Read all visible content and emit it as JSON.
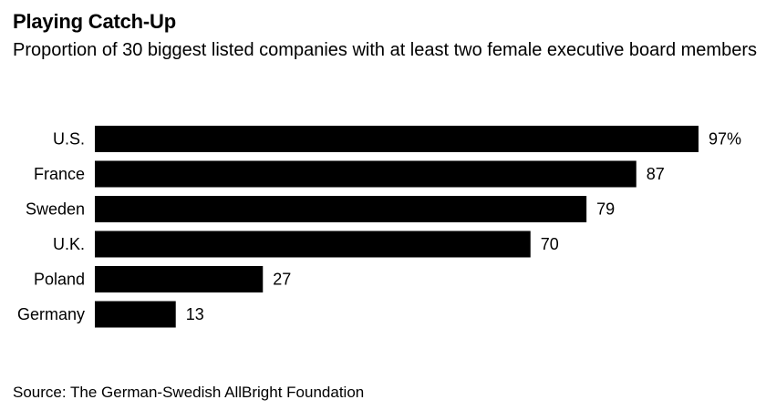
{
  "header": {
    "title": "Playing Catch-Up",
    "subtitle": "Proportion of 30 biggest listed companies with at least two female executive board members"
  },
  "footer": {
    "source": "Source: The German-Swedish AllBright Foundation"
  },
  "chart_data": {
    "type": "bar",
    "orientation": "horizontal",
    "title": "Playing Catch-Up",
    "subtitle": "Proportion of 30 biggest listed companies with at least two female executive board members",
    "categories": [
      "U.S.",
      "France",
      "Sweden",
      "U.K.",
      "Poland",
      "Germany"
    ],
    "values": [
      97,
      87,
      79,
      70,
      27,
      13
    ],
    "value_labels": [
      "97%",
      "87",
      "79",
      "70",
      "27",
      "13"
    ],
    "xlabel": "",
    "ylabel": "",
    "xlim": [
      0,
      97
    ],
    "grid": false,
    "bar_color": "#000000"
  }
}
